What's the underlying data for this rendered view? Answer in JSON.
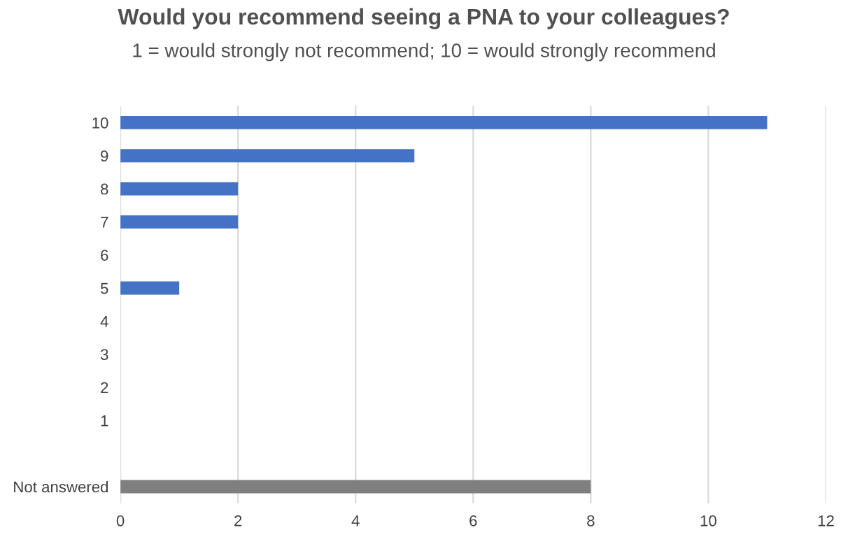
{
  "chart_data": {
    "type": "bar",
    "orientation": "horizontal",
    "title": "Would you recommend seeing a PNA to your colleagues?",
    "subtitle": "1 = would strongly not recommend; 10 = would strongly recommend",
    "categories": [
      "10",
      "9",
      "8",
      "7",
      "6",
      "5",
      "4",
      "3",
      "2",
      "1",
      null,
      "Not answered"
    ],
    "values": [
      11,
      5,
      2,
      2,
      0,
      1,
      0,
      0,
      0,
      0,
      null,
      8
    ],
    "colors": [
      "#4472c4",
      "#4472c4",
      "#4472c4",
      "#4472c4",
      "#4472c4",
      "#4472c4",
      "#4472c4",
      "#4472c4",
      "#4472c4",
      "#4472c4",
      "#4472c4",
      "#7f7f7f"
    ],
    "xlim": [
      0,
      12
    ],
    "xticks": [
      0,
      2,
      4,
      6,
      8,
      10,
      12
    ],
    "grid": "x"
  }
}
